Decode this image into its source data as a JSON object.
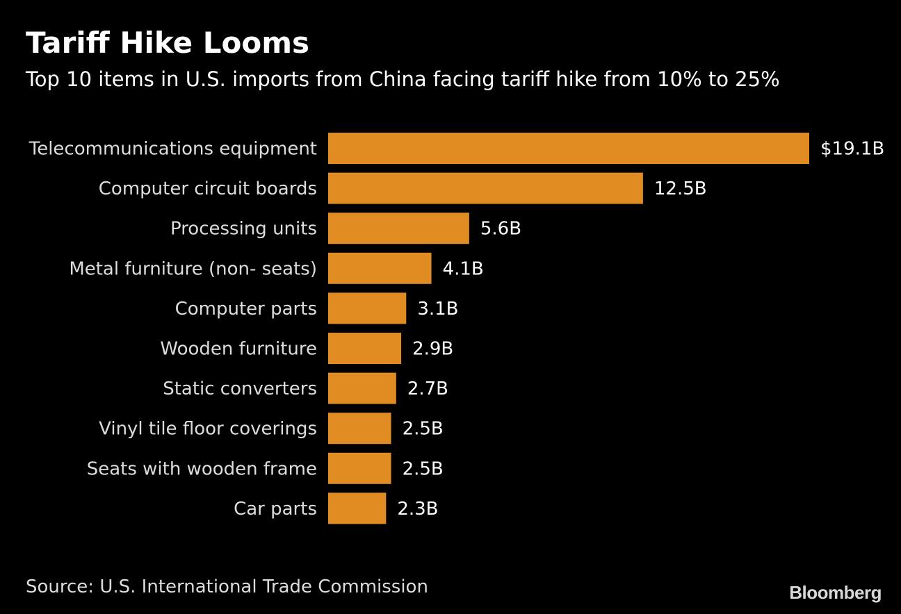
{
  "chart_data": {
    "type": "bar",
    "orientation": "horizontal",
    "title": "Tariff Hike Looms",
    "subtitle": "Top 10 items in U.S. imports from China facing tariff hike from 10% to 25%",
    "categories": [
      "Telecommunications equipment",
      "Computer circuit boards",
      "Processing units",
      "Metal furniture (non- seats)",
      "Computer parts",
      "Wooden furniture",
      "Static converters",
      "Vinyl tile floor coverings",
      "Seats with wooden frame",
      "Car parts"
    ],
    "values": [
      19.1,
      12.5,
      5.6,
      4.1,
      3.1,
      2.9,
      2.7,
      2.5,
      2.5,
      2.3
    ],
    "value_labels": [
      "$19.1B",
      "12.5B",
      "5.6B",
      "4.1B",
      "3.1B",
      "2.9B",
      "2.7B",
      "2.5B",
      "2.5B",
      "2.3B"
    ],
    "unit": "B",
    "xlim": [
      0,
      19.1
    ],
    "grid": false,
    "legend": "none",
    "bar_color": "#e08c23"
  },
  "footer": {
    "source": "Source: U.S. International Trade Commission",
    "brand": "Bloomberg"
  },
  "colors": {
    "background": "#000000",
    "bar": "#e08c23",
    "text": "#ffffff",
    "label_text": "#dcdcdc"
  }
}
